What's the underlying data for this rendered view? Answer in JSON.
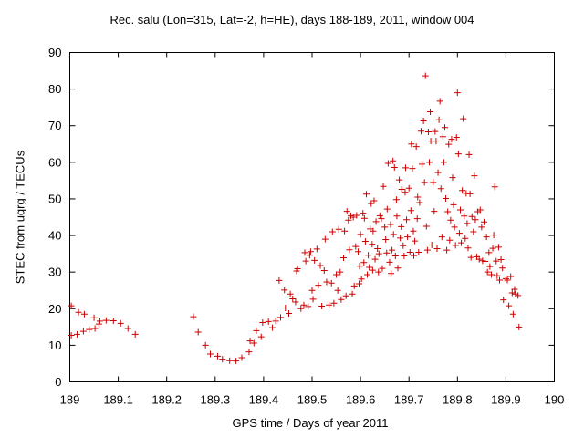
{
  "chart_data": {
    "type": "scatter",
    "title": "Rec. salu (Lon=315, Lat=-2, h=HE), days 188-189, 2011, window 004",
    "xlabel": "GPS time / Days of year 2011",
    "ylabel": "STEC from uqrg / TECUs",
    "xlim": [
      189,
      190
    ],
    "ylim": [
      0,
      90
    ],
    "xticks": [
      "189",
      "189.1",
      "189.2",
      "189.3",
      "189.4",
      "189.5",
      "189.6",
      "189.7",
      "189.8",
      "189.9",
      "190"
    ],
    "yticks": [
      "0",
      "10",
      "20",
      "30",
      "40",
      "50",
      "60",
      "70",
      "80",
      "90"
    ],
    "marker": "+",
    "marker_color": "#cc0000",
    "grid": false,
    "points": [
      [
        189.003,
        20.8
      ],
      [
        189.003,
        12.7
      ],
      [
        189.015,
        13.0
      ],
      [
        189.018,
        19.0
      ],
      [
        189.028,
        13.8
      ],
      [
        189.03,
        18.5
      ],
      [
        189.04,
        14.3
      ],
      [
        189.05,
        17.5
      ],
      [
        189.052,
        14.6
      ],
      [
        189.06,
        15.8
      ],
      [
        189.062,
        16.6
      ],
      [
        189.075,
        16.8
      ],
      [
        189.09,
        16.7
      ],
      [
        189.105,
        16.0
      ],
      [
        189.12,
        14.6
      ],
      [
        189.135,
        13.0
      ],
      [
        189.255,
        17.8
      ],
      [
        189.265,
        13.6
      ],
      [
        189.28,
        10.0
      ],
      [
        189.29,
        7.6
      ],
      [
        189.305,
        7.0
      ],
      [
        189.315,
        6.2
      ],
      [
        189.33,
        5.8
      ],
      [
        189.343,
        5.7
      ],
      [
        189.355,
        6.6
      ],
      [
        189.37,
        8.2
      ],
      [
        189.372,
        11.2
      ],
      [
        189.38,
        10.6
      ],
      [
        189.385,
        14.0
      ],
      [
        189.395,
        12.3
      ],
      [
        189.398,
        16.2
      ],
      [
        189.41,
        16.5
      ],
      [
        189.418,
        14.8
      ],
      [
        189.425,
        16.6
      ],
      [
        189.432,
        27.7
      ],
      [
        189.435,
        17.6
      ],
      [
        189.443,
        25.1
      ],
      [
        189.445,
        20.2
      ],
      [
        189.452,
        18.7
      ],
      [
        189.455,
        24.0
      ],
      [
        189.46,
        22.7
      ],
      [
        189.466,
        21.8
      ],
      [
        189.468,
        30.3
      ],
      [
        189.47,
        30.9
      ],
      [
        189.477,
        20.0
      ],
      [
        189.483,
        21.0
      ],
      [
        189.485,
        35.3
      ],
      [
        189.487,
        33.0
      ],
      [
        189.492,
        20.6
      ],
      [
        189.495,
        34.6
      ],
      [
        189.497,
        35.6
      ],
      [
        189.5,
        25.0
      ],
      [
        189.502,
        22.6
      ],
      [
        189.505,
        33.2
      ],
      [
        189.51,
        36.3
      ],
      [
        189.513,
        26.4
      ],
      [
        189.517,
        31.8
      ],
      [
        189.52,
        20.7
      ],
      [
        189.525,
        30.4
      ],
      [
        189.527,
        39.0
      ],
      [
        189.53,
        27.3
      ],
      [
        189.535,
        21.0
      ],
      [
        189.54,
        27.0
      ],
      [
        189.542,
        41.0
      ],
      [
        189.545,
        21.5
      ],
      [
        189.55,
        29.3
      ],
      [
        189.553,
        25.0
      ],
      [
        189.555,
        41.7
      ],
      [
        189.558,
        30.0
      ],
      [
        189.56,
        22.5
      ],
      [
        189.565,
        33.9
      ],
      [
        189.567,
        41.2
      ],
      [
        189.57,
        23.5
      ],
      [
        189.572,
        46.6
      ],
      [
        189.575,
        44.2
      ],
      [
        189.577,
        36.1
      ],
      [
        189.58,
        45.4
      ],
      [
        189.583,
        24.0
      ],
      [
        189.585,
        45.0
      ],
      [
        189.587,
        26.2
      ],
      [
        189.59,
        37.0
      ],
      [
        189.592,
        45.5
      ],
      [
        189.595,
        35.6
      ],
      [
        189.597,
        26.8
      ],
      [
        189.598,
        31.6
      ],
      [
        189.6,
        40.3
      ],
      [
        189.602,
        28.1
      ],
      [
        189.605,
        46.1
      ],
      [
        189.607,
        32.6
      ],
      [
        189.608,
        44.7
      ],
      [
        189.61,
        38.4
      ],
      [
        189.612,
        51.3
      ],
      [
        189.614,
        29.3
      ],
      [
        189.616,
        34.6
      ],
      [
        189.618,
        31.3
      ],
      [
        189.62,
        41.8
      ],
      [
        189.622,
        48.7
      ],
      [
        189.624,
        37.6
      ],
      [
        189.625,
        30.5
      ],
      [
        189.626,
        41.2
      ],
      [
        189.628,
        49.5
      ],
      [
        189.63,
        33.5
      ],
      [
        189.632,
        43.8
      ],
      [
        189.635,
        36.4
      ],
      [
        189.637,
        30.0
      ],
      [
        189.638,
        35.0
      ],
      [
        189.64,
        45.4
      ],
      [
        189.643,
        44.6
      ],
      [
        189.645,
        31.0
      ],
      [
        189.647,
        53.4
      ],
      [
        189.65,
        42.3
      ],
      [
        189.652,
        38.9
      ],
      [
        189.654,
        35.2
      ],
      [
        189.655,
        47.2
      ],
      [
        189.657,
        59.7
      ],
      [
        189.66,
        32.7
      ],
      [
        189.662,
        43.0
      ],
      [
        189.663,
        29.6
      ],
      [
        189.665,
        36.0
      ],
      [
        189.667,
        60.4
      ],
      [
        189.668,
        40.3
      ],
      [
        189.67,
        58.6
      ],
      [
        189.672,
        34.4
      ],
      [
        189.674,
        49.8
      ],
      [
        189.675,
        45.3
      ],
      [
        189.677,
        31.1
      ],
      [
        189.68,
        55.2
      ],
      [
        189.682,
        39.3
      ],
      [
        189.684,
        42.4
      ],
      [
        189.685,
        52.6
      ],
      [
        189.688,
        37.2
      ],
      [
        189.69,
        34.4
      ],
      [
        189.692,
        51.8
      ],
      [
        189.693,
        58.5
      ],
      [
        189.695,
        44.3
      ],
      [
        189.697,
        39.6
      ],
      [
        189.7,
        52.9
      ],
      [
        189.702,
        35.4
      ],
      [
        189.704,
        46.8
      ],
      [
        189.705,
        65.0
      ],
      [
        189.707,
        58.3
      ],
      [
        189.709,
        41.2
      ],
      [
        189.71,
        34.5
      ],
      [
        189.712,
        38.5
      ],
      [
        189.715,
        64.3
      ],
      [
        189.717,
        44.6
      ],
      [
        189.718,
        50.5
      ],
      [
        189.72,
        35.4
      ],
      [
        189.722,
        49.0
      ],
      [
        189.725,
        68.5
      ],
      [
        189.727,
        59.5
      ],
      [
        189.73,
        71.3
      ],
      [
        189.732,
        54.5
      ],
      [
        189.734,
        83.6
      ],
      [
        189.736,
        42.5
      ],
      [
        189.738,
        36.0
      ],
      [
        189.74,
        68.3
      ],
      [
        189.742,
        60.0
      ],
      [
        189.744,
        73.8
      ],
      [
        189.745,
        65.8
      ],
      [
        189.747,
        37.4
      ],
      [
        189.75,
        54.5
      ],
      [
        189.752,
        46.6
      ],
      [
        189.754,
        68.4
      ],
      [
        189.756,
        65.8
      ],
      [
        189.758,
        36.4
      ],
      [
        189.76,
        57.2
      ],
      [
        189.762,
        71.6
      ],
      [
        189.764,
        76.7
      ],
      [
        189.766,
        52.8
      ],
      [
        189.768,
        39.6
      ],
      [
        189.77,
        67.0
      ],
      [
        189.772,
        60.0
      ],
      [
        189.774,
        69.5
      ],
      [
        189.776,
        50.1
      ],
      [
        189.778,
        36.0
      ],
      [
        189.78,
        46.5
      ],
      [
        189.782,
        64.9
      ],
      [
        189.784,
        38.7
      ],
      [
        189.786,
        44.2
      ],
      [
        189.788,
        66.3
      ],
      [
        189.79,
        55.8
      ],
      [
        189.792,
        48.4
      ],
      [
        189.794,
        42.3
      ],
      [
        189.796,
        37.3
      ],
      [
        189.798,
        66.8
      ],
      [
        189.8,
        79.0
      ],
      [
        189.802,
        62.3
      ],
      [
        189.804,
        40.6
      ],
      [
        189.806,
        47.0
      ],
      [
        189.808,
        38.0
      ],
      [
        189.81,
        52.3
      ],
      [
        189.812,
        71.9
      ],
      [
        189.814,
        45.3
      ],
      [
        189.816,
        39.2
      ],
      [
        189.818,
        51.5
      ],
      [
        189.82,
        43.3
      ],
      [
        189.822,
        36.6
      ],
      [
        189.824,
        62.1
      ],
      [
        189.826,
        51.4
      ],
      [
        189.828,
        34.0
      ],
      [
        189.83,
        45.2
      ],
      [
        189.833,
        41.0
      ],
      [
        189.835,
        56.3
      ],
      [
        189.837,
        44.3
      ],
      [
        189.84,
        34.2
      ],
      [
        189.842,
        46.5
      ],
      [
        189.845,
        33.5
      ],
      [
        189.847,
        47.0
      ],
      [
        189.85,
        42.3
      ],
      [
        189.852,
        33.1
      ],
      [
        189.855,
        43.7
      ],
      [
        189.857,
        32.9
      ],
      [
        189.86,
        39.6
      ],
      [
        189.862,
        30.0
      ],
      [
        189.865,
        35.3
      ],
      [
        189.867,
        31.5
      ],
      [
        189.87,
        29.3
      ],
      [
        189.873,
        36.5
      ],
      [
        189.875,
        40.1
      ],
      [
        189.877,
        53.3
      ],
      [
        189.88,
        33.0
      ],
      [
        189.882,
        29.0
      ],
      [
        189.885,
        36.8
      ],
      [
        189.887,
        27.8
      ],
      [
        189.89,
        33.4
      ],
      [
        189.893,
        31.1
      ],
      [
        189.895,
        22.4
      ],
      [
        189.9,
        28.2
      ],
      [
        189.903,
        27.8
      ],
      [
        189.906,
        20.8
      ],
      [
        189.91,
        28.8
      ],
      [
        189.913,
        24.3
      ],
      [
        189.915,
        18.5
      ],
      [
        189.918,
        25.3
      ],
      [
        189.92,
        24.0
      ],
      [
        189.925,
        23.6
      ],
      [
        189.927,
        15.0
      ]
    ]
  }
}
